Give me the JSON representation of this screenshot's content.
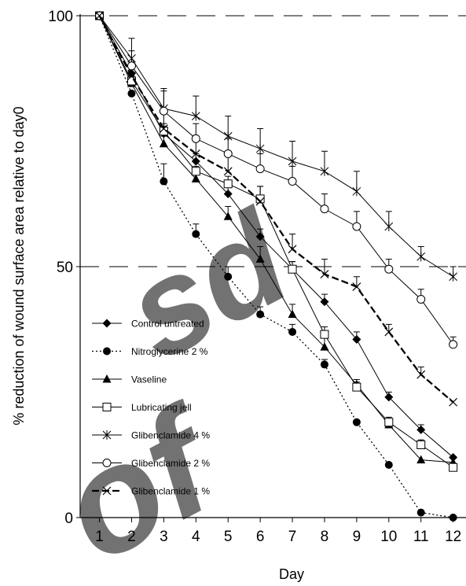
{
  "chart_data": {
    "type": "line",
    "xlabel": "Day",
    "ylabel": "% reduction of wound  surface area relative to day0",
    "x": [
      1,
      2,
      3,
      4,
      5,
      6,
      7,
      8,
      9,
      10,
      11,
      12
    ],
    "xlim": [
      0.4,
      12.4
    ],
    "ylim": [
      0,
      100
    ],
    "yticks": [
      0,
      50,
      100
    ],
    "reference_lines": [
      50,
      100
    ],
    "legend_position": "lower-left",
    "series": [
      {
        "name": "Control untreated",
        "marker": "diamond",
        "dash": "solid",
        "values": [
          100,
          88.5,
          76.5,
          71,
          64.5,
          56,
          49.5,
          43,
          35.5,
          24,
          17.5,
          12
        ],
        "errors": [
          0,
          1.5,
          1.5,
          1.5,
          2,
          1.5,
          1.5,
          1.5,
          1.5,
          1,
          1,
          0
        ]
      },
      {
        "name": "Nitroglycerine 2 %",
        "marker": "circle-filled",
        "dash": "dotted",
        "values": [
          100,
          84.5,
          67,
          56.5,
          48,
          40.5,
          37,
          30.5,
          19,
          10.5,
          1,
          0
        ],
        "errors": [
          0,
          0,
          3.5,
          2,
          2,
          1.5,
          1.5,
          1,
          0,
          0,
          0,
          0
        ]
      },
      {
        "name": "Vaseline",
        "marker": "triangle",
        "dash": "solid",
        "values": [
          100,
          86.5,
          74.5,
          67.5,
          60,
          51.5,
          40.5,
          34,
          26.5,
          18.5,
          11.5,
          11
        ],
        "errors": [
          0,
          1.5,
          1.5,
          1.5,
          2,
          2.5,
          2,
          2,
          0.5,
          1,
          0,
          0
        ]
      },
      {
        "name": "Lubricating jell",
        "marker": "square-open",
        "dash": "solid",
        "values": [
          100,
          87,
          77,
          69,
          66.5,
          63.5,
          49.5,
          36.5,
          26,
          19,
          14.5,
          10
        ],
        "errors": [
          0,
          1,
          1.5,
          1,
          1.5,
          2.5,
          1.5,
          1.5,
          1.5,
          1,
          1,
          0
        ]
      },
      {
        "name": "Glibenclamide 4 %",
        "marker": "asterisk",
        "dash": "solid",
        "values": [
          100,
          91.5,
          81.5,
          80,
          76,
          73.5,
          71,
          69,
          65,
          58,
          52,
          48
        ],
        "errors": [
          0,
          4,
          4,
          4,
          4,
          4,
          4,
          4,
          4,
          3,
          2,
          2
        ]
      },
      {
        "name": "Glibenclamide 2 %",
        "marker": "circle-open",
        "dash": "solid",
        "values": [
          100,
          90,
          81,
          75.5,
          72.5,
          69.5,
          67,
          61.5,
          58,
          49.5,
          43.5,
          34.5
        ],
        "errors": [
          0,
          3,
          4,
          3,
          3,
          3,
          3,
          3,
          3,
          2,
          2,
          1.5
        ]
      },
      {
        "name": "Glibenclamide 1 %",
        "marker": "x",
        "dash": "dashed-bold",
        "values": [
          100,
          88,
          77.5,
          72.5,
          69,
          63,
          53.5,
          48.5,
          46,
          37,
          28.5,
          23
        ],
        "errors": [
          0,
          0,
          3,
          3,
          3,
          3,
          3,
          3,
          2,
          1.5,
          1.5,
          0
        ]
      }
    ]
  }
}
